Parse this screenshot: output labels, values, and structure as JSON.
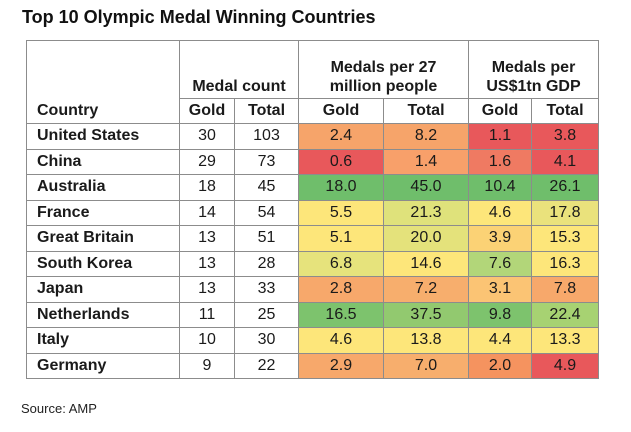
{
  "title": "Top 10 Olympic Medal Winning Countries",
  "source": "Source: AMP",
  "headers": {
    "group_medal_count": "Medal count",
    "group_per_people": [
      "Medals per 27",
      "million people"
    ],
    "group_per_gdp": [
      "Medals per",
      "US$1tn GDP"
    ],
    "country": "Country",
    "gold": "Gold",
    "total": "Total"
  },
  "colors": {
    "red": "#e8585b",
    "orange": "#f6a46a",
    "yellow": "#fde67a",
    "yellow_green": "#c8dc7a",
    "green": "#72bf6c"
  },
  "chart_data": {
    "type": "table",
    "title": "Top 10 Olympic Medal Winning Countries",
    "columns": [
      "Country",
      "Medal count Gold",
      "Medal count Total",
      "Medals per 27 million people Gold",
      "Medals per 27 million people Total",
      "Medals per US$1tn GDP Gold",
      "Medals per US$1tn GDP Total"
    ],
    "rows": [
      {
        "country": "United States",
        "gold": "30",
        "total": "103",
        "pp_gold": "2.4",
        "pp_total": "8.2",
        "gdp_gold": "1.1",
        "gdp_total": "3.8",
        "colors": [
          "#f6a46a",
          "#f6a46a",
          "#e8585b",
          "#e8585b"
        ]
      },
      {
        "country": "China",
        "gold": "29",
        "total": "73",
        "pp_gold": "0.6",
        "pp_total": "1.4",
        "gdp_gold": "1.6",
        "gdp_total": "4.1",
        "colors": [
          "#e8585b",
          "#f8a06a",
          "#ef7a62",
          "#e8585b"
        ]
      },
      {
        "country": "Australia",
        "gold": "18",
        "total": "45",
        "pp_gold": "18.0",
        "pp_total": "45.0",
        "gdp_gold": "10.4",
        "gdp_total": "26.1",
        "colors": [
          "#6fbe6b",
          "#6fbe6b",
          "#6fbe6b",
          "#6fbe6b"
        ]
      },
      {
        "country": "France",
        "gold": "14",
        "total": "54",
        "pp_gold": "5.5",
        "pp_total": "21.3",
        "gdp_gold": "4.6",
        "gdp_total": "17.8",
        "colors": [
          "#fde67a",
          "#dfe27b",
          "#fde67a",
          "#eae27c"
        ]
      },
      {
        "country": "Great Britain",
        "gold": "13",
        "total": "51",
        "pp_gold": "5.1",
        "pp_total": "20.0",
        "gdp_gold": "3.9",
        "gdp_total": "15.3",
        "colors": [
          "#fde67a",
          "#e4e27b",
          "#fbd275",
          "#fde67a"
        ]
      },
      {
        "country": "South Korea",
        "gold": "13",
        "total": "28",
        "pp_gold": "6.8",
        "pp_total": "14.6",
        "gdp_gold": "7.6",
        "gdp_total": "16.3",
        "colors": [
          "#e6e37c",
          "#fde67a",
          "#b2d679",
          "#fde67a"
        ]
      },
      {
        "country": "Japan",
        "gold": "13",
        "total": "33",
        "pp_gold": "2.8",
        "pp_total": "7.2",
        "gdp_gold": "3.1",
        "gdp_total": "7.8",
        "colors": [
          "#f7a86b",
          "#f7ae6d",
          "#fbc474",
          "#f7a86b"
        ]
      },
      {
        "country": "Netherlands",
        "gold": "11",
        "total": "25",
        "pp_gold": "16.5",
        "pp_total": "37.5",
        "gdp_gold": "9.8",
        "gdp_total": "22.4",
        "colors": [
          "#7dc36d",
          "#92c96f",
          "#7dc36d",
          "#a7d272"
        ]
      },
      {
        "country": "Italy",
        "gold": "10",
        "total": "30",
        "pp_gold": "4.6",
        "pp_total": "13.8",
        "gdp_gold": "4.4",
        "gdp_total": "13.3",
        "colors": [
          "#fde67a",
          "#fde67a",
          "#fde67a",
          "#fde67a"
        ]
      },
      {
        "country": "Germany",
        "gold": "9",
        "total": "22",
        "pp_gold": "2.9",
        "pp_total": "7.0",
        "gdp_gold": "2.0",
        "gdp_total": "4.9",
        "colors": [
          "#f7a86b",
          "#f7ae6d",
          "#f5935f",
          "#e8585b"
        ]
      }
    ]
  }
}
